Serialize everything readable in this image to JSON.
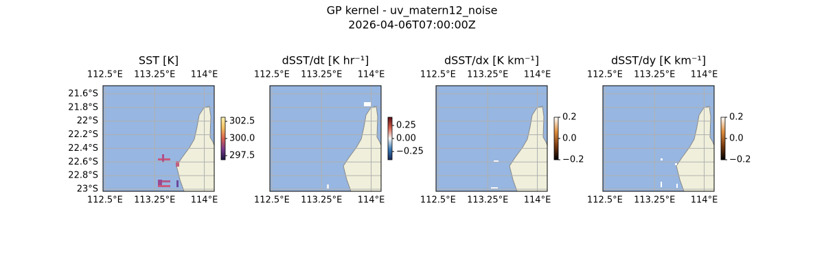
{
  "chart_data": {
    "type": "map",
    "title": "GP kernel - uv_matern12_noise",
    "subtitle": "2026-04-06T07:00:00Z",
    "xlim": [
      112.47,
      114.15
    ],
    "ylim": [
      -23.03,
      -21.48
    ],
    "xticks": [
      {
        "value": 112.5,
        "label": "112.5°E"
      },
      {
        "value": 113.25,
        "label": "113.25°E"
      },
      {
        "value": 114,
        "label": "114°E"
      }
    ],
    "yticks": [
      {
        "value": -21.6,
        "label": "21.6°S"
      },
      {
        "value": -21.8,
        "label": "21.8°S"
      },
      {
        "value": -22,
        "label": "22°S"
      },
      {
        "value": -22.2,
        "label": "22.2°S"
      },
      {
        "value": -22.4,
        "label": "22.4°S"
      },
      {
        "value": -22.6,
        "label": "22.6°S"
      },
      {
        "value": -22.8,
        "label": "22.8°S"
      },
      {
        "value": -23,
        "label": "23°S"
      }
    ],
    "grid": true,
    "panels": [
      {
        "title": "SST [K]",
        "lat_labels": true,
        "colorbar": {
          "colors": [
            "#1a1540",
            "#7a3a8c",
            "#d9604e",
            "#f4c060",
            "#fbf3b0"
          ],
          "lim": [
            296.9,
            303.1
          ],
          "ticks": [
            {
              "value": 302.5,
              "label": "302.5"
            },
            {
              "value": 300,
              "label": "300.0"
            },
            {
              "value": 297.5,
              "label": "297.5"
            }
          ]
        }
      },
      {
        "title": "dSST/dt [K hr⁻¹]",
        "lat_labels": false,
        "colorbar": {
          "colors": [
            "#162a5c",
            "#3a7ab8",
            "#f7f7f7",
            "#d6604d",
            "#5a0c14"
          ],
          "lim": [
            -0.408,
            0.408
          ],
          "ticks": [
            0.25,
            {
              "value": 0,
              "label": "0.00"
            },
            {
              "value": -0.25,
              "label": "−0.25"
            }
          ]
        }
      },
      {
        "title": "dSST/dx [K km⁻¹]",
        "lat_labels": false,
        "colorbar": {
          "colors": [
            "#000000",
            "#7a3a10",
            "#e09040",
            "#ffffff"
          ],
          "lim": [
            -0.2,
            0.2
          ],
          "ticks": [
            0.2,
            {
              "value": 0,
              "label": "0.0"
            },
            {
              "value": -0.2,
              "label": "−0.2"
            }
          ]
        }
      },
      {
        "title": "dSST/dy [K km⁻¹]",
        "lat_labels": false,
        "colorbar": {
          "colors": [
            "#000000",
            "#7a3a10",
            "#e09040",
            "#ffffff"
          ],
          "lim": [
            -0.2,
            0.2
          ],
          "ticks": [
            0.2,
            {
              "value": 0,
              "label": "0.0"
            },
            {
              "value": -0.2,
              "label": "−0.2"
            }
          ]
        }
      }
    ]
  }
}
